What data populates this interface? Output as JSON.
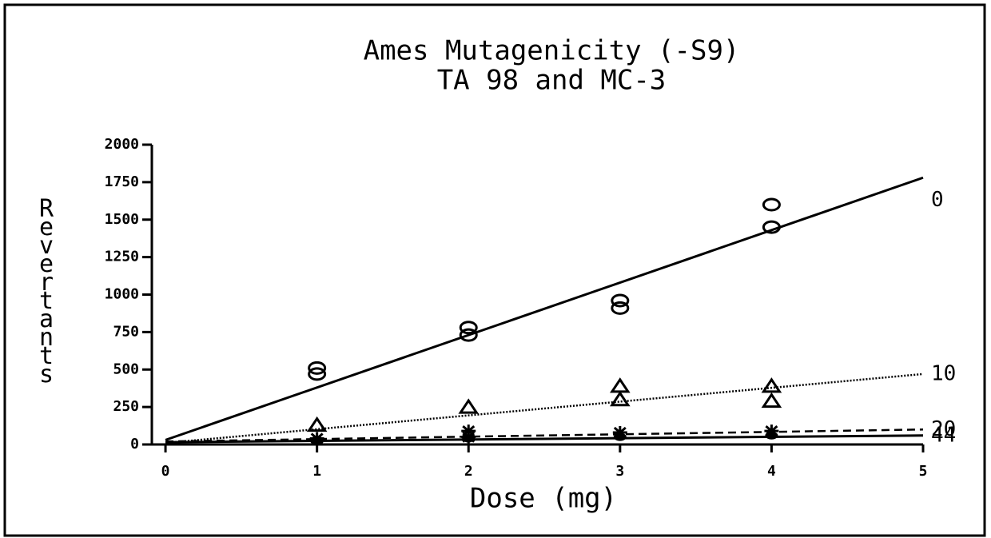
{
  "chart_data": {
    "type": "scatter",
    "title": "Ames Mutagenicity (-S9)",
    "subtitle": "TA 98 and MC-3",
    "x_label": "Dose (mg)",
    "y_label": "Revertants",
    "xlim": [
      -0.09,
      5
    ],
    "xticks": [
      0,
      1,
      2,
      3,
      4,
      5
    ],
    "ylim": [
      0,
      2000
    ],
    "yticks": [
      0,
      250,
      500,
      750,
      1000,
      1250,
      1500,
      1750,
      2000
    ],
    "color": "#000000",
    "series": [
      {
        "name": "0",
        "marker": "circle",
        "line_style": "solid",
        "x": [
          1,
          1,
          2,
          2,
          3,
          3,
          4,
          4
        ],
        "values": [
          510,
          470,
          780,
          730,
          960,
          910,
          1600,
          1450
        ],
        "fit": {
          "x": [
            0,
            5
          ],
          "values": [
            30,
            1780
          ]
        }
      },
      {
        "name": "10",
        "marker": "triangle",
        "line_style": "dotted",
        "x": [
          1,
          2,
          3,
          3,
          4,
          4
        ],
        "values": [
          130,
          250,
          390,
          300,
          390,
          290
        ],
        "fit": {
          "x": [
            0,
            5
          ],
          "values": [
            10,
            470
          ]
        }
      },
      {
        "name": "20",
        "marker": "star",
        "line_style": "dashed",
        "x": [
          1,
          2,
          2,
          3,
          4
        ],
        "values": [
          40,
          90,
          50,
          80,
          90
        ],
        "fit": {
          "x": [
            0,
            5
          ],
          "values": [
            20,
            100
          ]
        }
      },
      {
        "name": "44",
        "marker": "dot",
        "line_style": "solid",
        "x": [
          1,
          2,
          3,
          4
        ],
        "values": [
          30,
          40,
          50,
          60
        ],
        "fit": {
          "x": [
            0,
            5
          ],
          "values": [
            15,
            60
          ]
        }
      }
    ]
  }
}
